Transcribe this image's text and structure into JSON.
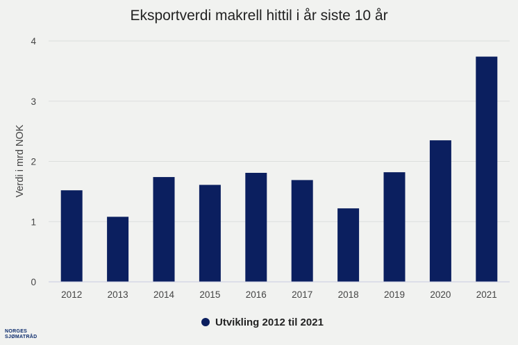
{
  "chart_data": {
    "type": "bar",
    "title": "Eksportverdi makrell hittil i år siste 10 år",
    "ylabel": "Verdi i mrd NOK",
    "xlabel": "",
    "categories": [
      "2012",
      "2013",
      "2014",
      "2015",
      "2016",
      "2017",
      "2018",
      "2019",
      "2020",
      "2021"
    ],
    "series": [
      {
        "name": "Utvikling 2012 til 2021",
        "values": [
          1.52,
          1.08,
          1.74,
          1.61,
          1.81,
          1.69,
          1.22,
          1.82,
          2.35,
          3.74
        ]
      }
    ],
    "ylim": [
      0,
      4
    ],
    "yticks": [
      "0",
      "1",
      "2",
      "3",
      "4"
    ],
    "grid": true,
    "legend": "bottom-center",
    "colors": {
      "bar": "#0b1f5f",
      "grid": "#dcdedd",
      "axis": "#c8cbe0"
    }
  },
  "logo": {
    "line1": "NORGES",
    "line2": "SJØMATRÅD"
  }
}
